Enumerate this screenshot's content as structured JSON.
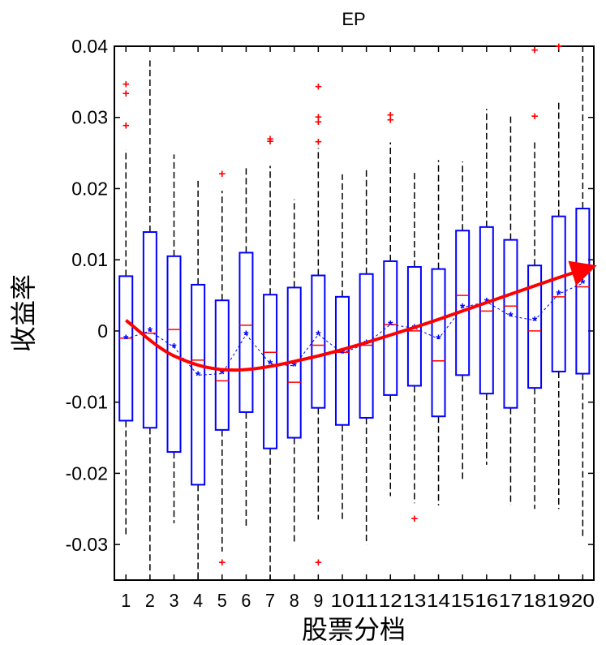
{
  "chart_data": {
    "type": "box",
    "title": "EP",
    "xlabel": "股票分档",
    "ylabel": "收益率",
    "ylim": [
      -0.035,
      0.04
    ],
    "yticks": [
      -0.03,
      -0.02,
      -0.01,
      0,
      0.01,
      0.02,
      0.03,
      0.04
    ],
    "ytick_labels": [
      "-0.03",
      "-0.02",
      "-0.01",
      "0",
      "0.01",
      "0.02",
      "0.03",
      "0.04"
    ],
    "categories": [
      "1",
      "2",
      "3",
      "4",
      "5",
      "6",
      "7",
      "8",
      "9",
      "10",
      "11",
      "12",
      "13",
      "14",
      "15",
      "16",
      "17",
      "18",
      "19",
      "20"
    ],
    "grid": false,
    "colors": {
      "box": "#0000ff",
      "median": "#ff0000",
      "whisker": "#000000",
      "outlier": "#ff0000",
      "mean": "#0000ff",
      "trend": "#ff0000"
    },
    "series": [
      {
        "boxes": [
          {
            "q1": -0.0126,
            "median": -0.001,
            "q3": 0.0077,
            "whisker_low": -0.029,
            "whisker_high": 0.0255,
            "mean": -0.0011,
            "outliers": [
              0.0348,
              0.0335,
              0.029
            ]
          },
          {
            "q1": -0.0136,
            "median": -0.0003,
            "q3": 0.0139,
            "whisker_low": -0.034,
            "whisker_high": 0.038,
            "mean": 0.0,
            "outliers": []
          },
          {
            "q1": -0.017,
            "median": 0.0002,
            "q3": 0.0105,
            "whisker_low": -0.027,
            "whisker_high": 0.0248,
            "mean": -0.0023,
            "outliers": []
          },
          {
            "q1": -0.0216,
            "median": -0.0041,
            "q3": 0.0065,
            "whisker_low": -0.035,
            "whisker_high": 0.0215,
            "mean": -0.0062,
            "outliers": []
          },
          {
            "q1": -0.0139,
            "median": -0.007,
            "q3": 0.0043,
            "whisker_low": -0.031,
            "whisker_high": 0.0197,
            "mean": -0.006,
            "outliers": [
              0.0222,
              -0.0324
            ]
          },
          {
            "q1": -0.0114,
            "median": 0.0008,
            "q3": 0.011,
            "whisker_low": -0.0275,
            "whisker_high": 0.023,
            "mean": -0.0005,
            "outliers": []
          },
          {
            "q1": -0.0165,
            "median": -0.003,
            "q3": 0.0051,
            "whisker_low": -0.035,
            "whisker_high": 0.0232,
            "mean": -0.0046,
            "outliers": [
              0.0271,
              0.0268
            ]
          },
          {
            "q1": -0.015,
            "median": -0.0072,
            "q3": 0.0061,
            "whisker_low": -0.03,
            "whisker_high": 0.0185,
            "mean": -0.0049,
            "outliers": []
          },
          {
            "q1": -0.0108,
            "median": -0.002,
            "q3": 0.0078,
            "whisker_low": -0.0265,
            "whisker_high": 0.0257,
            "mean": -0.0005,
            "outliers": [
              0.0345,
              0.0302,
              0.0295,
              0.0267,
              -0.0324
            ]
          },
          {
            "q1": -0.0132,
            "median": -0.003,
            "q3": 0.0048,
            "whisker_low": -0.0265,
            "whisker_high": 0.022,
            "mean": -0.0031,
            "outliers": []
          },
          {
            "q1": -0.0122,
            "median": -0.002,
            "q3": 0.008,
            "whisker_low": -0.03,
            "whisker_high": 0.023,
            "mean": -0.0018,
            "outliers": []
          },
          {
            "q1": -0.009,
            "median": 0.0009,
            "q3": 0.0098,
            "whisker_low": -0.0232,
            "whisker_high": 0.0265,
            "mean": 0.0009,
            "outliers": [
              0.0305,
              0.0298
            ]
          },
          {
            "q1": -0.0077,
            "median": 0.0,
            "q3": 0.009,
            "whisker_low": -0.0242,
            "whisker_high": 0.0222,
            "mean": 0.0004,
            "outliers": [
              -0.0262
            ]
          },
          {
            "q1": -0.012,
            "median": -0.0042,
            "q3": 0.0087,
            "whisker_low": -0.0245,
            "whisker_high": 0.024,
            "mean": -0.0011,
            "outliers": []
          },
          {
            "q1": -0.0062,
            "median": 0.005,
            "q3": 0.0141,
            "whisker_low": -0.021,
            "whisker_high": 0.0238,
            "mean": 0.0033,
            "outliers": []
          },
          {
            "q1": -0.0088,
            "median": 0.0028,
            "q3": 0.0146,
            "whisker_low": -0.0188,
            "whisker_high": 0.0312,
            "mean": 0.0041,
            "outliers": []
          },
          {
            "q1": -0.0108,
            "median": 0.0035,
            "q3": 0.0128,
            "whisker_low": -0.0245,
            "whisker_high": 0.0305,
            "mean": 0.0021,
            "outliers": []
          },
          {
            "q1": -0.008,
            "median": 0.0,
            "q3": 0.0092,
            "whisker_low": -0.025,
            "whisker_high": 0.0265,
            "mean": 0.0015,
            "outliers": [
              0.0396,
              0.0303
            ]
          },
          {
            "q1": -0.0057,
            "median": 0.0048,
            "q3": 0.0161,
            "whisker_low": -0.025,
            "whisker_high": 0.0322,
            "mean": 0.0052,
            "outliers": [
              0.0401
            ]
          },
          {
            "q1": -0.006,
            "median": 0.0062,
            "q3": 0.0172,
            "whisker_low": -0.029,
            "whisker_high": 0.039,
            "mean": 0.0067,
            "outliers": []
          }
        ]
      }
    ],
    "trend_arrow": {
      "x": [
        1,
        3,
        5.5,
        9,
        13,
        16,
        19,
        20.2
      ],
      "y": [
        0.0015,
        -0.0035,
        -0.0055,
        -0.0035,
        0.0005,
        0.004,
        0.0075,
        0.0088
      ]
    }
  }
}
